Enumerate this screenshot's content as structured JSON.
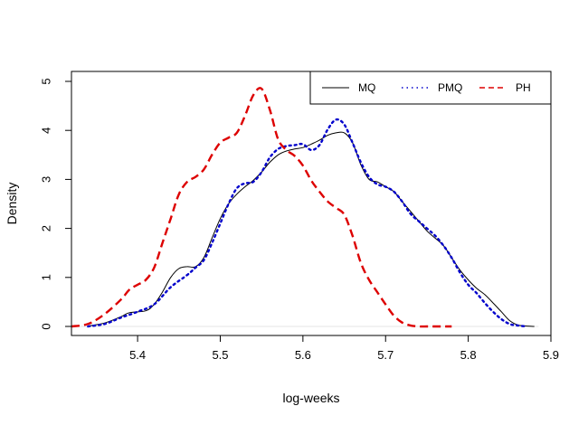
{
  "chart_data": {
    "type": "line",
    "title": "",
    "xlabel": "log-weeks",
    "ylabel": "Density",
    "xlim": [
      5.32,
      5.9
    ],
    "ylim": [
      0,
      5
    ],
    "x_ticks": [
      5.4,
      5.5,
      5.6,
      5.7,
      5.8,
      5.9
    ],
    "y_ticks": [
      0,
      1,
      2,
      3,
      4,
      5
    ],
    "grid": false,
    "legend_position": "top-right",
    "series": [
      {
        "name": "MQ",
        "color": "#000000",
        "style": "solid",
        "x": [
          5.34,
          5.36,
          5.38,
          5.39,
          5.41,
          5.42,
          5.43,
          5.44,
          5.45,
          5.46,
          5.47,
          5.48,
          5.49,
          5.5,
          5.51,
          5.52,
          5.53,
          5.54,
          5.55,
          5.56,
          5.57,
          5.58,
          5.59,
          5.6,
          5.61,
          5.62,
          5.63,
          5.64,
          5.65,
          5.66,
          5.67,
          5.68,
          5.69,
          5.7,
          5.71,
          5.72,
          5.73,
          5.74,
          5.75,
          5.76,
          5.77,
          5.78,
          5.79,
          5.8,
          5.81,
          5.82,
          5.83,
          5.84,
          5.85,
          5.86,
          5.87,
          5.88
        ],
        "y": [
          0.01,
          0.07,
          0.2,
          0.28,
          0.32,
          0.45,
          0.7,
          1.0,
          1.18,
          1.22,
          1.22,
          1.4,
          1.8,
          2.2,
          2.5,
          2.7,
          2.85,
          2.98,
          3.15,
          3.35,
          3.5,
          3.58,
          3.62,
          3.65,
          3.72,
          3.8,
          3.9,
          3.95,
          3.95,
          3.75,
          3.3,
          3.0,
          2.95,
          2.85,
          2.75,
          2.55,
          2.35,
          2.15,
          1.95,
          1.8,
          1.65,
          1.4,
          1.15,
          0.95,
          0.78,
          0.65,
          0.48,
          0.3,
          0.12,
          0.03,
          0.01,
          0.0
        ]
      },
      {
        "name": "PMQ",
        "color": "#0000cc",
        "style": "dotted",
        "x": [
          5.34,
          5.36,
          5.38,
          5.4,
          5.42,
          5.44,
          5.46,
          5.47,
          5.48,
          5.49,
          5.5,
          5.51,
          5.52,
          5.53,
          5.54,
          5.55,
          5.56,
          5.57,
          5.58,
          5.59,
          5.6,
          5.61,
          5.62,
          5.63,
          5.64,
          5.65,
          5.66,
          5.67,
          5.68,
          5.69,
          5.7,
          5.71,
          5.72,
          5.73,
          5.74,
          5.75,
          5.76,
          5.77,
          5.78,
          5.79,
          5.8,
          5.81,
          5.82,
          5.83,
          5.84,
          5.85,
          5.86,
          5.87
        ],
        "y": [
          0.0,
          0.05,
          0.18,
          0.3,
          0.45,
          0.8,
          1.05,
          1.2,
          1.35,
          1.7,
          2.1,
          2.5,
          2.82,
          2.92,
          2.95,
          3.15,
          3.45,
          3.62,
          3.68,
          3.7,
          3.72,
          3.6,
          3.7,
          4.02,
          4.22,
          4.12,
          3.75,
          3.35,
          3.05,
          2.9,
          2.85,
          2.75,
          2.55,
          2.3,
          2.15,
          2.0,
          1.85,
          1.65,
          1.4,
          1.1,
          0.85,
          0.68,
          0.48,
          0.3,
          0.15,
          0.05,
          0.02,
          0.0
        ]
      },
      {
        "name": "PH",
        "color": "#dd0000",
        "style": "dashed",
        "x": [
          5.32,
          5.34,
          5.36,
          5.38,
          5.39,
          5.4,
          5.41,
          5.42,
          5.43,
          5.44,
          5.45,
          5.46,
          5.47,
          5.48,
          5.49,
          5.5,
          5.51,
          5.52,
          5.53,
          5.54,
          5.55,
          5.56,
          5.57,
          5.58,
          5.59,
          5.6,
          5.61,
          5.62,
          5.63,
          5.64,
          5.65,
          5.66,
          5.67,
          5.68,
          5.69,
          5.7,
          5.71,
          5.72,
          5.73,
          5.74,
          5.75,
          5.76,
          5.77,
          5.78
        ],
        "y": [
          0.0,
          0.05,
          0.25,
          0.55,
          0.75,
          0.85,
          0.95,
          1.2,
          1.7,
          2.2,
          2.7,
          2.95,
          3.05,
          3.2,
          3.5,
          3.75,
          3.85,
          3.95,
          4.3,
          4.72,
          4.85,
          4.42,
          3.82,
          3.6,
          3.48,
          3.28,
          2.98,
          2.75,
          2.55,
          2.42,
          2.28,
          1.85,
          1.3,
          0.95,
          0.7,
          0.45,
          0.22,
          0.08,
          0.02,
          0.0,
          0.0,
          0.0,
          0.0,
          0.0
        ]
      }
    ]
  }
}
